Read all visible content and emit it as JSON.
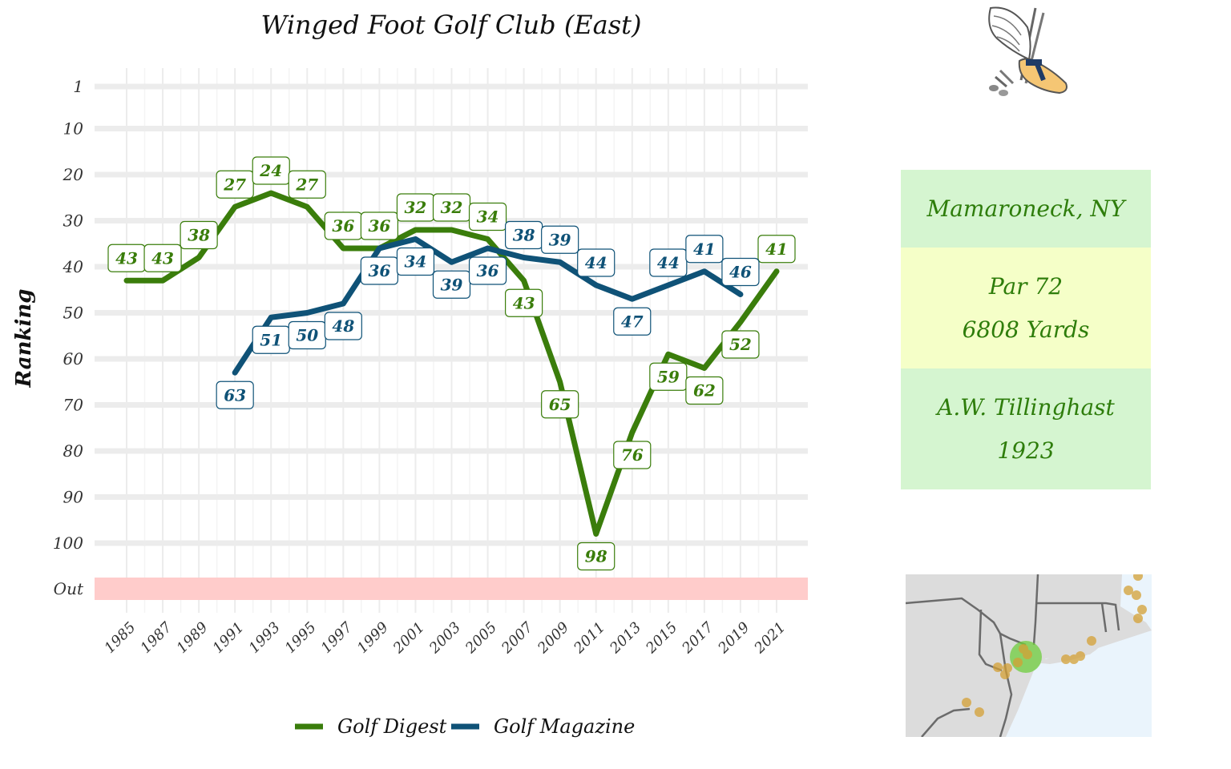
{
  "chart_data": {
    "type": "line",
    "title": "Winged Foot Golf Club (East)",
    "xlabel": "",
    "ylabel": "Ranking",
    "x_ticks": [
      "1985",
      "1987",
      "1989",
      "1991",
      "1993",
      "1995",
      "1997",
      "1999",
      "2001",
      "2003",
      "2005",
      "2007",
      "2009",
      "2011",
      "2013",
      "2015",
      "2017",
      "2019",
      "2021"
    ],
    "y_ticks": [
      {
        "label": "1",
        "value": 1
      },
      {
        "label": "10",
        "value": 10
      },
      {
        "label": "20",
        "value": 20
      },
      {
        "label": "30",
        "value": 30
      },
      {
        "label": "40",
        "value": 40
      },
      {
        "label": "50",
        "value": 50
      },
      {
        "label": "60",
        "value": 60
      },
      {
        "label": "70",
        "value": 70
      },
      {
        "label": "80",
        "value": 80
      },
      {
        "label": "90",
        "value": 90
      },
      {
        "label": "100",
        "value": 100
      },
      {
        "label": "Out",
        "value": 110
      }
    ],
    "xlim": [
      1985,
      2021
    ],
    "ylim": [
      1,
      110
    ],
    "y_reversed": true,
    "grid": true,
    "legend_position": "bottom",
    "out_band_color": "#ffcccb",
    "series": [
      {
        "name": "Golf Digest",
        "color": "#3a7d0b",
        "x": [
          1985,
          1987,
          1989,
          1991,
          1993,
          1995,
          1997,
          1999,
          2001,
          2003,
          2005,
          2007,
          2009,
          2011,
          2013,
          2015,
          2017,
          2019,
          2021
        ],
        "y": [
          43,
          43,
          38,
          27,
          24,
          27,
          36,
          36,
          32,
          32,
          34,
          43,
          65,
          98,
          76,
          59,
          62,
          52,
          41
        ],
        "label_pos": [
          "above",
          "above",
          "above",
          "above",
          "above",
          "above",
          "above",
          "above",
          "above",
          "above",
          "above",
          "below",
          "below",
          "below",
          "below",
          "below",
          "below",
          "below",
          "above"
        ]
      },
      {
        "name": "Golf Magazine",
        "color": "#0f5277",
        "x": [
          1991,
          1993,
          1995,
          1997,
          1999,
          2001,
          2003,
          2005,
          2007,
          2009,
          2011,
          2013,
          2015,
          2017,
          2019
        ],
        "y": [
          63,
          51,
          50,
          48,
          36,
          34,
          39,
          36,
          38,
          39,
          44,
          47,
          44,
          41,
          46
        ],
        "label_pos": [
          "below",
          "below",
          "below",
          "below",
          "below",
          "below",
          "below",
          "below",
          "above",
          "above",
          "above",
          "below",
          "above",
          "above",
          "above"
        ]
      }
    ]
  },
  "info": {
    "location": "Mamaroneck, NY",
    "par": "Par 72",
    "yards": "6808 Yards",
    "architect": "A.W. Tillinghast",
    "year": "1923"
  },
  "colors": {
    "location_bg": "#d5f5d0",
    "par_bg": "#f5ffc8",
    "architect_bg": "#d5f5d0",
    "info_text": "#2e7d0b",
    "map_land": "#dcdcdc",
    "map_water": "#eaf4fc",
    "map_border": "#6b6b6b",
    "map_marker": "#d4a035",
    "map_highlight": "#6fce3e"
  },
  "logo": {
    "icon": "winged-foot-logo"
  }
}
